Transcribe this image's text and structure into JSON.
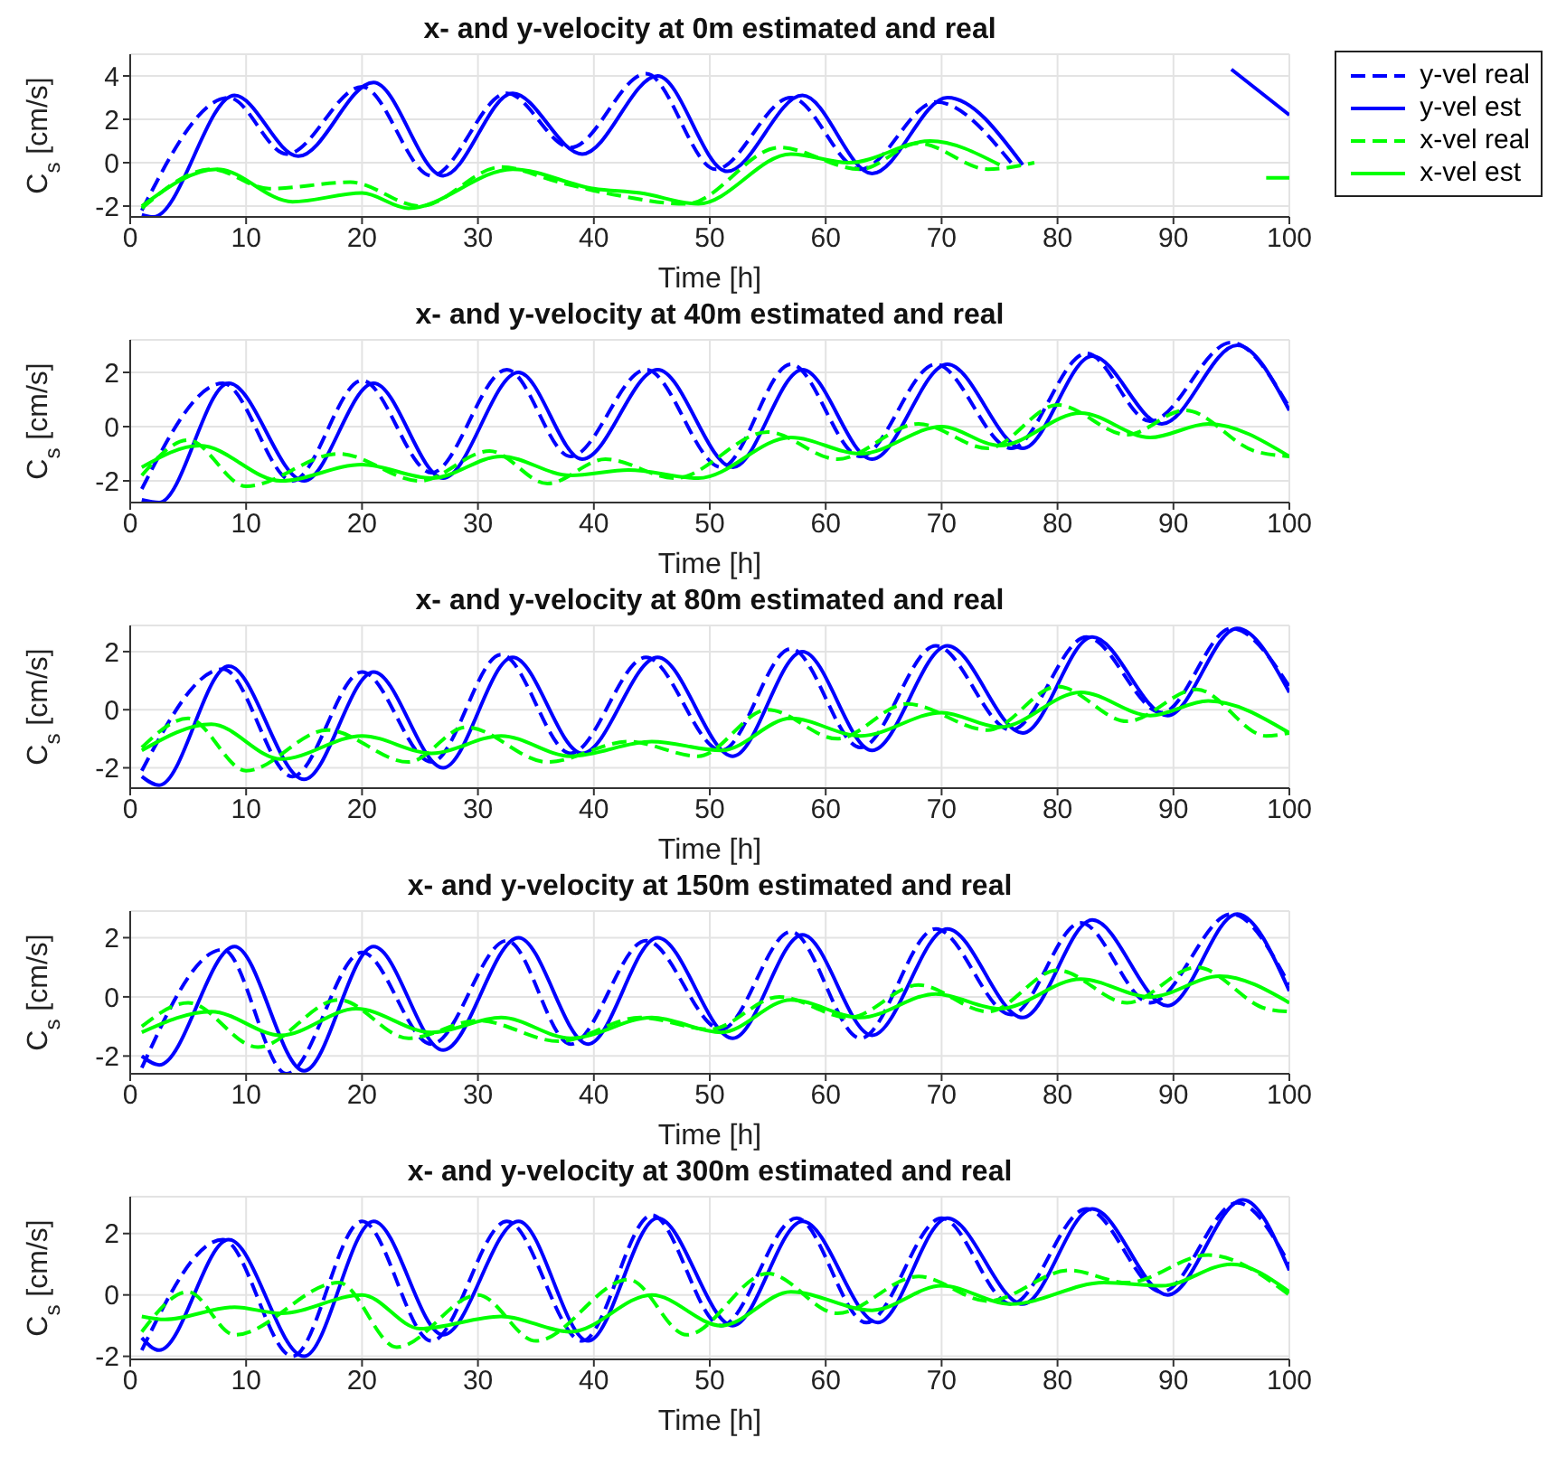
{
  "chart_data": [
    {
      "type": "line",
      "title": "x- and y-velocity at 0m estimated and real",
      "xlabel": "Time [h]",
      "ylabel": "C$_{s}$ [cm/s]",
      "xlim": [
        0,
        100
      ],
      "xticks": [
        0,
        10,
        20,
        30,
        40,
        50,
        60,
        70,
        80,
        90,
        100
      ],
      "ylim": [
        -2.5,
        5
      ],
      "yticks": [
        -2,
        0,
        2,
        4
      ],
      "grid": true,
      "legend": "top right",
      "marker": "none",
      "series": [
        {
          "name": "y-vel real",
          "color": "#0000ff",
          "line_style": "dashed",
          "x": [
            1,
            8.5,
            13.5,
            20,
            26,
            32.5,
            38,
            44.5,
            50.5,
            57,
            63,
            69.5,
            76
          ],
          "values": [
            -2.2,
            3.0,
            0.4,
            3.5,
            -0.6,
            3.2,
            0.7,
            4.1,
            -0.3,
            3.0,
            -0.3,
            2.8,
            0.0
          ]
        },
        {
          "name": "y-vel est",
          "color": "#0000ff",
          "line_style": "solid",
          "x": [
            1,
            2,
            9,
            14.5,
            21,
            27,
            33,
            39,
            45.5,
            51.5,
            58,
            64,
            70.5,
            77,
            80,
            95,
            100
          ],
          "values": [
            -2.4,
            -2.5,
            3.1,
            0.3,
            3.7,
            -0.6,
            3.2,
            0.4,
            4.0,
            -0.4,
            3.1,
            -0.5,
            3.0,
            -0.1,
            null,
            4.3,
            2.2
          ]
        },
        {
          "name": "x-vel real",
          "color": "#00ff00",
          "line_style": "dashed",
          "x": [
            1,
            7,
            12,
            19,
            25,
            32,
            37,
            42,
            48,
            56,
            63,
            68,
            74,
            78
          ],
          "values": [
            -2.1,
            -0.3,
            -1.2,
            -0.9,
            -2.0,
            -0.2,
            -0.9,
            -1.5,
            -1.9,
            0.7,
            -0.3,
            0.9,
            -0.3,
            0.0
          ]
        },
        {
          "name": "x-vel est",
          "color": "#00ff00",
          "line_style": "solid",
          "x": [
            1,
            7.5,
            14,
            20,
            24,
            33,
            40,
            44,
            49,
            57,
            62,
            69,
            75,
            78,
            98,
            100
          ],
          "values": [
            -2.0,
            -0.3,
            -1.8,
            -1.4,
            -2.1,
            -0.3,
            -1.2,
            -1.4,
            -1.9,
            0.4,
            0.0,
            1.0,
            -0.1,
            null,
            -0.7,
            -0.7
          ]
        }
      ]
    },
    {
      "type": "line",
      "title": "x- and y-velocity at 40m estimated and real",
      "xlabel": "Time [h]",
      "ylabel": "C$_{s}$ [cm/s]",
      "xlim": [
        0,
        100
      ],
      "xticks": [
        0,
        10,
        20,
        30,
        40,
        50,
        60,
        70,
        80,
        90,
        100
      ],
      "ylim": [
        -2.8,
        3.2
      ],
      "yticks": [
        -2,
        0,
        2
      ],
      "grid": true,
      "marker": "none",
      "series": [
        {
          "color": "#0000ff",
          "line_style": "dashed",
          "x": [
            1,
            8,
            14,
            20,
            26,
            32.5,
            38,
            44.5,
            51,
            57,
            63,
            69.5,
            76,
            82.5,
            88,
            95,
            100
          ],
          "values": [
            -2.3,
            1.6,
            -2.0,
            1.7,
            -1.7,
            2.1,
            -1.1,
            2.1,
            -1.5,
            2.3,
            -1.1,
            2.3,
            -0.8,
            2.7,
            0.2,
            3.1,
            0.7
          ]
        },
        {
          "color": "#0000ff",
          "line_style": "solid",
          "x": [
            1,
            2.5,
            8.5,
            15,
            21,
            27,
            33.5,
            39,
            45.5,
            52,
            58,
            64,
            70.5,
            77,
            83,
            89,
            95.5,
            100
          ],
          "values": [
            -2.7,
            -2.8,
            1.6,
            -2.0,
            1.6,
            -1.9,
            2.0,
            -1.2,
            2.1,
            -1.5,
            2.1,
            -1.2,
            2.3,
            -0.8,
            2.6,
            0.1,
            3.0,
            0.6
          ]
        },
        {
          "color": "#00ff00",
          "line_style": "dashed",
          "x": [
            1,
            5,
            10,
            18,
            25,
            31,
            36,
            41,
            47,
            55,
            61,
            68,
            74,
            80,
            86,
            91,
            97,
            100
          ],
          "values": [
            -1.8,
            -0.5,
            -2.2,
            -1.0,
            -2.0,
            -0.9,
            -2.1,
            -1.2,
            -1.9,
            -0.2,
            -1.2,
            0.1,
            -0.8,
            0.8,
            -0.3,
            0.6,
            -0.9,
            -1.1
          ]
        },
        {
          "color": "#00ff00",
          "line_style": "solid",
          "x": [
            1,
            6,
            13,
            20,
            26,
            32,
            38,
            43,
            49,
            57,
            63,
            70,
            75,
            82,
            88,
            93,
            100
          ],
          "values": [
            -1.5,
            -0.7,
            -2.0,
            -1.4,
            -1.9,
            -1.1,
            -1.8,
            -1.6,
            -1.9,
            -0.4,
            -1.0,
            0.0,
            -0.7,
            0.5,
            -0.4,
            0.1,
            -1.1
          ]
        }
      ]
    },
    {
      "type": "line",
      "title": "x- and y-velocity at 80m estimated and real",
      "xlabel": "Time [h]",
      "ylabel": "C$_{s}$ [cm/s]",
      "xlim": [
        0,
        100
      ],
      "xticks": [
        0,
        10,
        20,
        30,
        40,
        50,
        60,
        70,
        80,
        90,
        100
      ],
      "ylim": [
        -2.7,
        2.9
      ],
      "yticks": [
        -2,
        0,
        2
      ],
      "grid": true,
      "marker": "none",
      "series": [
        {
          "color": "#0000ff",
          "line_style": "dashed",
          "x": [
            1,
            8,
            14,
            20,
            26,
            32,
            38,
            44.5,
            51,
            57,
            63,
            69.5,
            76,
            82.5,
            89,
            95,
            100
          ],
          "values": [
            -2.1,
            1.4,
            -2.3,
            1.3,
            -1.8,
            1.9,
            -1.5,
            1.8,
            -1.4,
            2.1,
            -1.3,
            2.2,
            -0.7,
            2.5,
            -0.1,
            2.8,
            0.8
          ]
        },
        {
          "color": "#0000ff",
          "line_style": "solid",
          "x": [
            1,
            2.5,
            8.5,
            15,
            21,
            27,
            33,
            39,
            45.5,
            52,
            58,
            64,
            70.5,
            77,
            83,
            89.5,
            95.5,
            100
          ],
          "values": [
            -2.3,
            -2.6,
            1.5,
            -2.4,
            1.3,
            -2.0,
            1.8,
            -1.5,
            1.8,
            -1.6,
            2.0,
            -1.4,
            2.2,
            -0.8,
            2.5,
            -0.2,
            2.8,
            0.6
          ]
        },
        {
          "color": "#00ff00",
          "line_style": "dashed",
          "x": [
            1,
            5,
            10,
            17,
            24,
            29,
            36,
            43,
            49,
            55,
            61,
            67,
            74,
            80,
            86,
            92,
            98,
            100
          ],
          "values": [
            -1.3,
            -0.3,
            -2.1,
            -0.7,
            -1.8,
            -0.6,
            -1.8,
            -1.1,
            -1.6,
            0.0,
            -1.0,
            0.2,
            -0.7,
            0.8,
            -0.4,
            0.7,
            -0.9,
            -0.8
          ]
        },
        {
          "color": "#00ff00",
          "line_style": "solid",
          "x": [
            1,
            7,
            13,
            20,
            26,
            32,
            38,
            45,
            51,
            57,
            63,
            70,
            75,
            82,
            88,
            93,
            100
          ],
          "values": [
            -1.4,
            -0.5,
            -1.7,
            -0.9,
            -1.5,
            -0.9,
            -1.6,
            -1.1,
            -1.4,
            -0.3,
            -0.9,
            -0.1,
            -0.6,
            0.6,
            -0.2,
            0.3,
            -0.8
          ]
        }
      ]
    },
    {
      "type": "line",
      "title": "x- and y-velocity at 150m estimated and real",
      "xlabel": "Time [h]",
      "ylabel": "C$_{s}$ [cm/s]",
      "xlim": [
        0,
        100
      ],
      "xticks": [
        0,
        10,
        20,
        30,
        40,
        50,
        60,
        70,
        80,
        90,
        100
      ],
      "ylim": [
        -2.6,
        2.9
      ],
      "yticks": [
        -2,
        0,
        2
      ],
      "grid": true,
      "marker": "none",
      "series": [
        {
          "color": "#0000ff",
          "line_style": "dashed",
          "x": [
            1,
            8,
            13.5,
            20,
            26,
            32.5,
            38,
            44.5,
            51,
            57,
            63,
            69.5,
            76,
            82,
            88,
            95,
            100
          ],
          "values": [
            -2.4,
            1.6,
            -2.6,
            1.5,
            -1.6,
            1.9,
            -1.6,
            1.9,
            -1.1,
            2.2,
            -1.4,
            2.3,
            -0.6,
            2.5,
            -0.2,
            2.8,
            0.4
          ]
        },
        {
          "color": "#0000ff",
          "line_style": "solid",
          "x": [
            1,
            2.5,
            9,
            15,
            21,
            27,
            33.5,
            39.5,
            45.5,
            52,
            58,
            64,
            70.5,
            77,
            83,
            89.5,
            95.5,
            100
          ],
          "values": [
            -2.0,
            -2.3,
            1.7,
            -2.5,
            1.7,
            -1.8,
            2.0,
            -1.6,
            2.0,
            -1.4,
            2.1,
            -1.3,
            2.3,
            -0.7,
            2.6,
            -0.3,
            2.8,
            0.2
          ]
        },
        {
          "color": "#00ff00",
          "line_style": "dashed",
          "x": [
            1,
            5,
            11,
            18,
            24,
            30,
            37,
            44,
            50,
            56,
            62,
            68,
            74,
            80,
            86,
            92,
            98,
            100
          ],
          "values": [
            -1.0,
            -0.2,
            -1.7,
            -0.1,
            -1.4,
            -0.8,
            -1.5,
            -0.7,
            -1.1,
            0.0,
            -0.7,
            0.4,
            -0.5,
            0.9,
            -0.2,
            1.0,
            -0.4,
            -0.5
          ]
        },
        {
          "color": "#00ff00",
          "line_style": "solid",
          "x": [
            1,
            7,
            13,
            19.5,
            26,
            32,
            38,
            45,
            51,
            57,
            63,
            69.5,
            75,
            82,
            88,
            94,
            100
          ],
          "values": [
            -1.2,
            -0.5,
            -1.3,
            -0.4,
            -1.2,
            -0.7,
            -1.4,
            -0.7,
            -1.2,
            -0.1,
            -0.7,
            0.1,
            -0.4,
            0.6,
            0.0,
            0.7,
            -0.2
          ]
        }
      ]
    },
    {
      "type": "line",
      "title": "x- and y-velocity at 300m estimated and real",
      "xlabel": "Time [h]",
      "ylabel": "C$_{s}$ [cm/s]",
      "xlim": [
        0,
        100
      ],
      "xticks": [
        0,
        10,
        20,
        30,
        40,
        50,
        60,
        70,
        80,
        90,
        100
      ],
      "ylim": [
        -2.1,
        3.2
      ],
      "yticks": [
        -2,
        0,
        2
      ],
      "grid": true,
      "marker": "none",
      "series": [
        {
          "color": "#0000ff",
          "line_style": "dashed",
          "x": [
            1,
            8,
            14,
            20,
            26,
            32.5,
            39,
            45,
            51,
            57.5,
            63.5,
            70,
            76,
            82.5,
            89,
            95.5,
            100
          ],
          "values": [
            -1.8,
            1.8,
            -2.0,
            2.4,
            -1.5,
            2.4,
            -1.5,
            2.6,
            -1.0,
            2.5,
            -0.9,
            2.5,
            -0.3,
            2.8,
            0.1,
            3.0,
            1.0
          ]
        },
        {
          "color": "#0000ff",
          "line_style": "solid",
          "x": [
            1,
            2.5,
            8.5,
            15,
            21,
            27,
            33.5,
            39.5,
            45.5,
            52,
            58,
            64.5,
            70.5,
            77,
            83,
            89.5,
            96,
            100
          ],
          "values": [
            -1.4,
            -1.8,
            1.8,
            -2.0,
            2.4,
            -1.3,
            2.4,
            -1.5,
            2.5,
            -1.0,
            2.4,
            -0.9,
            2.5,
            -0.3,
            2.8,
            0.0,
            3.1,
            0.8
          ]
        },
        {
          "color": "#00ff00",
          "line_style": "dashed",
          "x": [
            1,
            5,
            9,
            18,
            23,
            30,
            35,
            43,
            48,
            55,
            61,
            68,
            74,
            81,
            86,
            93,
            100
          ],
          "values": [
            -1.2,
            0.1,
            -1.3,
            0.4,
            -1.7,
            0.0,
            -1.5,
            0.5,
            -1.3,
            0.7,
            -0.6,
            0.6,
            -0.2,
            0.8,
            0.4,
            1.3,
            0.0
          ]
        },
        {
          "color": "#00ff00",
          "line_style": "solid",
          "x": [
            1,
            3,
            9,
            13,
            20,
            25,
            32,
            38,
            45,
            51,
            57,
            64,
            70,
            76,
            84,
            89,
            95,
            100
          ],
          "values": [
            -0.7,
            -0.8,
            -0.4,
            -0.6,
            0.0,
            -1.1,
            -0.7,
            -1.2,
            0.0,
            -1.0,
            0.1,
            -0.5,
            0.3,
            -0.3,
            0.4,
            0.3,
            1.0,
            0.1
          ]
        }
      ]
    }
  ]
}
